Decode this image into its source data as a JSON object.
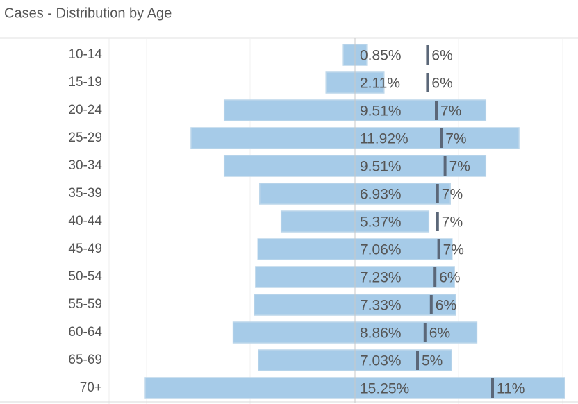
{
  "chart_data": {
    "type": "butterfly-bar",
    "title": "Cases - Distribution by Age",
    "categories": [
      "10-14",
      "15-19",
      "20-24",
      "25-29",
      "30-34",
      "35-39",
      "40-44",
      "45-49",
      "50-54",
      "55-59",
      "60-64",
      "65-69",
      "70+"
    ],
    "series": [
      {
        "color": "#a6cbe8",
        "values": [
          0.85,
          2.11,
          9.51,
          11.92,
          9.51,
          6.93,
          5.37,
          7.06,
          7.23,
          7.33,
          8.86,
          7.03,
          15.25
        ],
        "value_labels": [
          "0.85%",
          "2.11%",
          "9.51%",
          "11.92%",
          "9.51%",
          "6.93%",
          "5.37%",
          "7.06%",
          "7.23%",
          "7.33%",
          "8.86%",
          "7.03%",
          "15.25%"
        ]
      },
      {
        "color": "#5b6778",
        "values": [
          5.8,
          5.8,
          6.5,
          6.9,
          7.2,
          6.6,
          6.6,
          6.7,
          6.4,
          6.1,
          5.6,
          5.0,
          11.0
        ],
        "value_labels": [
          "6%",
          "6%",
          "7%",
          "7%",
          "7%",
          "7%",
          "7%",
          "7%",
          "6%",
          "6%",
          "6%",
          "5%",
          "11%"
        ]
      }
    ]
  }
}
